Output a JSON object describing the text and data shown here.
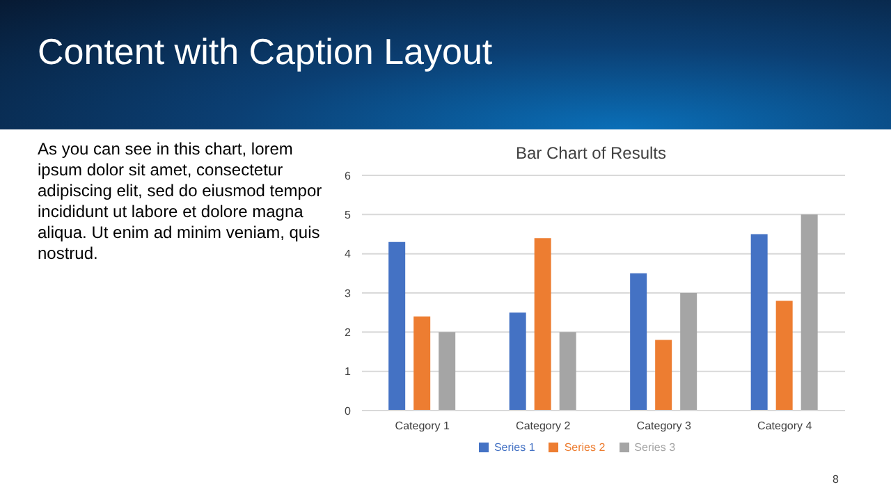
{
  "chart_data": {
    "type": "bar",
    "title": "Bar Chart of Results",
    "annotations": [
      "Content with Caption Layout",
      "As you can see in this chart, lorem ipsum dolor sit amet, consectetur adipiscing elit, sed do eiusmod tempor incididunt ut labore et dolore magna aliqua. Ut enim ad minim veniam, quis nostrud.",
      "8"
    ],
    "categories": [
      "Category 1",
      "Category 2",
      "Category 3",
      "Category 4"
    ],
    "series": [
      {
        "name": "Series 1",
        "color": "#4472c4",
        "values": [
          4.3,
          2.5,
          3.5,
          4.5
        ]
      },
      {
        "name": "Series 2",
        "color": "#ed7d31",
        "values": [
          2.4,
          4.4,
          1.8,
          2.8
        ]
      },
      {
        "name": "Series 3",
        "color": "#a5a5a5",
        "values": [
          2,
          2,
          3,
          5
        ]
      }
    ],
    "ylim": [
      0,
      6
    ],
    "yticks": [
      0,
      1,
      2,
      3,
      4,
      5,
      6
    ],
    "grid": "y",
    "legend": "bottom"
  }
}
